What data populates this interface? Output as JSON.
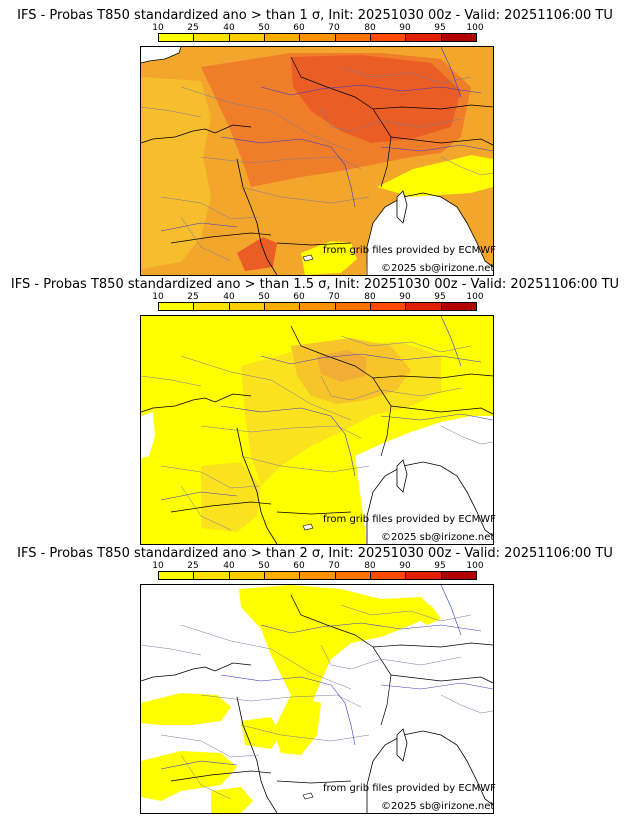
{
  "colorbar": {
    "labels": [
      "10",
      "25",
      "40",
      "50",
      "60",
      "70",
      "80",
      "90",
      "95",
      "100"
    ],
    "colors": [
      "#ffff00",
      "#ffe200",
      "#ffcc00",
      "#ffae00",
      "#ff9200",
      "#ff7400",
      "#ff4a00",
      "#e02000",
      "#b00000",
      "#6e0000"
    ]
  },
  "panels": [
    {
      "title": "IFS - Probas T850  standardized ano > than 1 σ, Init: 20251030 00z - Valid: 20251106:00 TU",
      "credit": "from grib files provided by ECMWF",
      "copyright": "©2025 sb@irizone.net",
      "fill": {
        "base": "#f3a62c",
        "light": "#f6bd2c",
        "hot": "#f07d29",
        "hotter": "#ea5d25",
        "yellow": "#ffff00",
        "sea": "#ffffff"
      }
    },
    {
      "title": "IFS - Probas T850  standardized ano > than 1.5 σ, Init: 20251030 00z - Valid: 20251106:00 TU",
      "credit": "from grib files provided by ECMWF",
      "copyright": "©2025 sb@irizone.net",
      "fill": {
        "base": "#ffff00",
        "light": "#fbe21e",
        "hot": "#f7c52a",
        "hotter": "#f2ae34",
        "yellow": "#ffff00",
        "sea": "#ffffff"
      }
    },
    {
      "title": "IFS - Probas T850  standardized ano > than 2 σ, Init: 20251030 00z - Valid: 20251106:00 TU",
      "credit": "from grib files provided by ECMWF",
      "copyright": "©2025 sb@irizone.net",
      "fill": {
        "base": "#ffffff",
        "light": "#ffff00",
        "hot": "#ffff00",
        "hotter": "#ffee00",
        "yellow": "#ffff00",
        "sea": "#ffffff"
      }
    }
  ]
}
